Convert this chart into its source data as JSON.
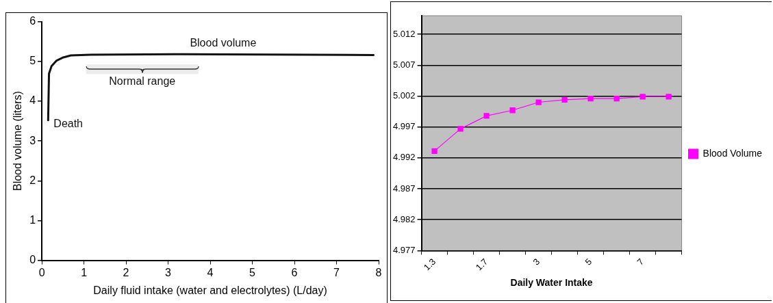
{
  "chart_data": [
    {
      "type": "line",
      "xlabel": "Daily fluid intake (water and electrolytes) (L/day)",
      "ylabel": "Blood volume (liters)",
      "xlim": [
        0,
        8
      ],
      "xticks": [
        0,
        1,
        2,
        3,
        4,
        5,
        6,
        7,
        8
      ],
      "ylim": [
        0,
        6
      ],
      "yticks": [
        0,
        1,
        2,
        3,
        4,
        5,
        6
      ],
      "grid": false,
      "legend": false,
      "marker": "none",
      "series": [
        {
          "name": "Blood volume",
          "color": "#111111",
          "x": [
            0.15,
            0.17,
            0.23,
            0.35,
            0.51,
            0.69,
            1.16,
            3.33,
            7.88
          ],
          "values": [
            3.52,
            4.69,
            4.88,
            5.02,
            5.1,
            5.15,
            5.17,
            5.18,
            5.16
          ]
        }
      ],
      "annotations": [
        {
          "text": "Death",
          "x": 0.15,
          "y": 3.52
        }
      ],
      "bands": [
        {
          "axis": "x",
          "from": 1.05,
          "to": 3.72,
          "label": "Normal range"
        }
      ]
    },
    {
      "type": "line",
      "xlabel": "Daily Water Intake",
      "categories": [
        "1.3",
        null,
        "1.7",
        null,
        "3",
        null,
        "5",
        null,
        "7",
        null
      ],
      "ylim": [
        4.977,
        5.015
      ],
      "yticks": [
        4.977,
        4.982,
        4.987,
        4.992,
        4.997,
        5.002,
        5.007,
        5.012
      ],
      "grid": "y",
      "legend": "right",
      "marker": "square",
      "series": [
        {
          "name": "Blood Volume",
          "color": "#ff00ff",
          "values": [
            4.9931,
            4.9967,
            4.9988,
            4.9997,
            5.001,
            5.0014,
            5.0016,
            5.0016,
            5.0019,
            5.0019
          ]
        }
      ]
    }
  ]
}
